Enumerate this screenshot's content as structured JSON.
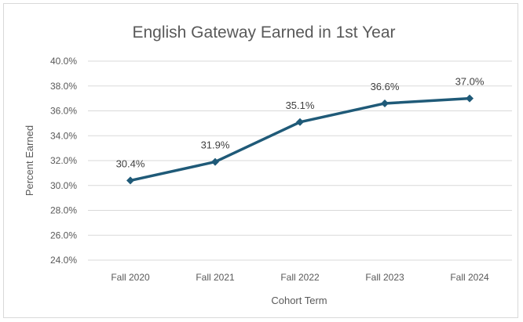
{
  "chart_data": {
    "type": "line",
    "title": "English Gateway Earned in 1st Year",
    "xlabel": "Cohort Term",
    "ylabel": "Percent Earned",
    "categories": [
      "Fall 2020",
      "Fall 2021",
      "Fall 2022",
      "Fall 2023",
      "Fall 2024"
    ],
    "series": [
      {
        "values": [
          30.4,
          31.9,
          35.1,
          36.6,
          37.0
        ],
        "data_labels": [
          "30.4%",
          "31.9%",
          "35.1%",
          "36.6%",
          "37.0%"
        ]
      }
    ],
    "ylim": [
      24.0,
      40.0
    ],
    "yticks": [
      24.0,
      26.0,
      28.0,
      30.0,
      32.0,
      34.0,
      36.0,
      38.0,
      40.0
    ],
    "ytick_labels": [
      "24.0%",
      "26.0%",
      "28.0%",
      "30.0%",
      "32.0%",
      "34.0%",
      "36.0%",
      "38.0%",
      "40.0%"
    ],
    "grid": true,
    "legend": "none",
    "marker": "diamond",
    "colors": {
      "line": "#1f5a78",
      "grid": "#d9d9d9",
      "text": "#595959"
    }
  }
}
